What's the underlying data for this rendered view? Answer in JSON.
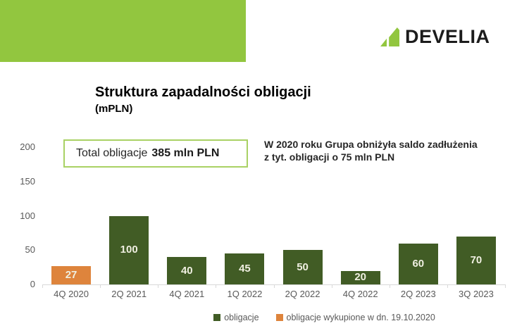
{
  "logo": {
    "text": "DEVELIA"
  },
  "total_box": {
    "label": "Total obligacje",
    "value": "385 mln PLN"
  },
  "annotation": {
    "line1": "W 2020 roku Grupa obniżyła saldo zadłużenia",
    "line2": "z tyt. obligacji o 75 mln PLN"
  },
  "colors": {
    "brand_green": "#92c63f",
    "bar_green": "#415c25",
    "bar_orange": "#de843c",
    "box_border": "#a9d164",
    "axis_text": "#595959",
    "bar_label_text": "#efefe1"
  },
  "chart_data": {
    "type": "bar",
    "title": "Struktura zapadalności obligacji",
    "subtitle": "(mPLN)",
    "units": "mPLN",
    "xlabel": "",
    "ylabel": "",
    "ylim": [
      0,
      200
    ],
    "yticks": [
      0,
      50,
      100,
      150,
      200
    ],
    "grid": false,
    "legend_position": "bottom",
    "categories": [
      "4Q 2020",
      "2Q 2021",
      "4Q 2021",
      "1Q 2022",
      "2Q 2022",
      "4Q 2022",
      "2Q 2023",
      "3Q 2023"
    ],
    "series": [
      {
        "name": "obligacje",
        "color": "#415c25",
        "values": [
          null,
          100,
          40,
          45,
          50,
          20,
          60,
          70
        ]
      },
      {
        "name": "obligacje wykupione w dn. 19.10.2020",
        "color": "#de843c",
        "values": [
          27,
          null,
          null,
          null,
          null,
          null,
          null,
          null
        ]
      }
    ]
  }
}
